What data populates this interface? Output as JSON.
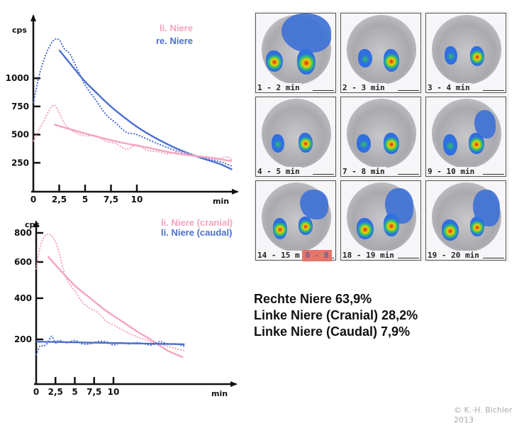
{
  "colors": {
    "pink": "#f5a3bf",
    "blue": "#4a6fcf",
    "axis": "#111111"
  },
  "chart_data": [
    {
      "type": "line",
      "title": "",
      "xlabel": "min",
      "ylabel": "cps",
      "xlim": [
        0,
        20
      ],
      "ylim": [
        0,
        1250
      ],
      "x_ticks": [
        0,
        2.5,
        5,
        7.5,
        10
      ],
      "x_tick_labels": [
        "0",
        "2,5",
        "5",
        "7,5",
        "10"
      ],
      "y_ticks": [
        250,
        500,
        750,
        1000
      ],
      "y_tick_labels": [
        "250",
        "500",
        "750",
        "1000"
      ],
      "legend": {
        "position": "top-right",
        "entries": [
          {
            "name": "li. Niere",
            "color": "#f5a3bf"
          },
          {
            "name": "re. Niere",
            "color": "#4a6fcf"
          }
        ]
      },
      "series": [
        {
          "name": "re. Niere (Messung)",
          "color": "#4a6fcf",
          "style": "dotted",
          "x": [
            0,
            0.5,
            1,
            1.5,
            2,
            2.5,
            3,
            3.5,
            4,
            5,
            6,
            7,
            8,
            9,
            10,
            12,
            14,
            16,
            18,
            19.2
          ],
          "y": [
            780,
            1000,
            1160,
            1270,
            1340,
            1340,
            1260,
            1220,
            1130,
            940,
            810,
            680,
            600,
            520,
            500,
            420,
            350,
            300,
            260,
            220
          ]
        },
        {
          "name": "re. Niere (Fit)",
          "color": "#4a6fcf",
          "style": "solid",
          "x": [
            2.5,
            4,
            5,
            6,
            7,
            8,
            10,
            12,
            14,
            16,
            18,
            19.2
          ],
          "y": [
            1250,
            1080,
            970,
            880,
            790,
            710,
            570,
            460,
            370,
            300,
            240,
            190
          ]
        },
        {
          "name": "li. Niere (Messung)",
          "color": "#f5a3bf",
          "style": "dotted",
          "x": [
            0,
            1,
            2,
            3,
            4,
            5,
            6,
            7,
            8,
            9,
            10,
            11,
            12,
            13,
            14,
            15,
            16,
            17,
            18,
            18.8,
            19.2
          ],
          "y": [
            440,
            620,
            760,
            600,
            520,
            490,
            490,
            440,
            420,
            370,
            410,
            360,
            350,
            330,
            350,
            330,
            310,
            300,
            290,
            300,
            270
          ]
        },
        {
          "name": "li. Niere (Fit)",
          "color": "#f5a3bf",
          "style": "solid",
          "x": [
            2,
            5,
            8,
            11,
            14,
            17,
            19.2
          ],
          "y": [
            590,
            510,
            440,
            385,
            330,
            295,
            265
          ]
        }
      ]
    },
    {
      "type": "line",
      "title": "",
      "xlabel": "min",
      "ylabel": "cps",
      "xlim": [
        0,
        20
      ],
      "ylim": [
        0,
        850
      ],
      "x_ticks": [
        0,
        2.5,
        5,
        7.5,
        10
      ],
      "x_tick_labels": [
        "0",
        "2,5",
        "5",
        "7,5",
        "10"
      ],
      "y_ticks": [
        200,
        400,
        600,
        800
      ],
      "y_tick_labels": [
        "200",
        "400",
        "600",
        "800"
      ],
      "legend": {
        "position": "top-right",
        "entries": [
          {
            "name": "li. Niere (cranial)",
            "color": "#f5a3bf"
          },
          {
            "name": "li. Niere (caudal)",
            "color": "#4a6fcf"
          }
        ]
      },
      "series": [
        {
          "name": "li. Niere cranial (Messung)",
          "color": "#f5a3bf",
          "style": "dotted",
          "x": [
            0,
            0.5,
            1,
            1.5,
            2,
            2.5,
            3,
            3.5,
            4,
            5,
            6,
            7,
            8,
            9,
            10,
            12,
            14,
            16,
            18,
            19.2
          ],
          "y": [
            560,
            700,
            770,
            790,
            780,
            740,
            660,
            560,
            500,
            440,
            380,
            350,
            330,
            290,
            270,
            230,
            200,
            180,
            160,
            150
          ]
        },
        {
          "name": "li. Niere cranial (Fit)",
          "color": "#f5a3bf",
          "style": "solid",
          "x": [
            1.5,
            3,
            5,
            7,
            9,
            11,
            13,
            15,
            17,
            19
          ],
          "y": [
            640,
            560,
            470,
            400,
            340,
            290,
            240,
            195,
            150,
            120
          ]
        },
        {
          "name": "li. Niere caudal (Messung)",
          "color": "#4a6fcf",
          "style": "dotted",
          "x": [
            0,
            0.5,
            1,
            1.5,
            2,
            2.5,
            3,
            4,
            5,
            6,
            7,
            8,
            9,
            10,
            11,
            12,
            13,
            14,
            15,
            16,
            17,
            18,
            19.2
          ],
          "y": [
            130,
            170,
            170,
            185,
            215,
            185,
            195,
            185,
            195,
            180,
            180,
            190,
            190,
            175,
            185,
            180,
            185,
            180,
            175,
            190,
            180,
            180,
            170
          ]
        },
        {
          "name": "li. Niere caudal (Fit)",
          "color": "#4a6fcf",
          "style": "solid",
          "x": [
            0,
            19.2
          ],
          "y": [
            190,
            178
          ]
        }
      ]
    }
  ],
  "scintigraphy": {
    "frames": [
      {
        "label": "1 - 2 min"
      },
      {
        "label": "2 - 3 min"
      },
      {
        "label": "3 - 4 min"
      },
      {
        "label": "4 - 5 min"
      },
      {
        "label": "7 - 8 min"
      },
      {
        "label": "9 - 10 min"
      },
      {
        "label": "14 - 15 m"
      },
      {
        "label": "18 - 19 min"
      },
      {
        "label": "19 - 20 min"
      }
    ],
    "badge": "0 - 8"
  },
  "results": [
    "Rechte Niere 63,9%",
    "Linke Niere (Cranial) 28,2%",
    "Linke Niere (Caudal) 7,9%"
  ],
  "copyright": [
    "© K.-H. Bichler",
    "2013"
  ]
}
